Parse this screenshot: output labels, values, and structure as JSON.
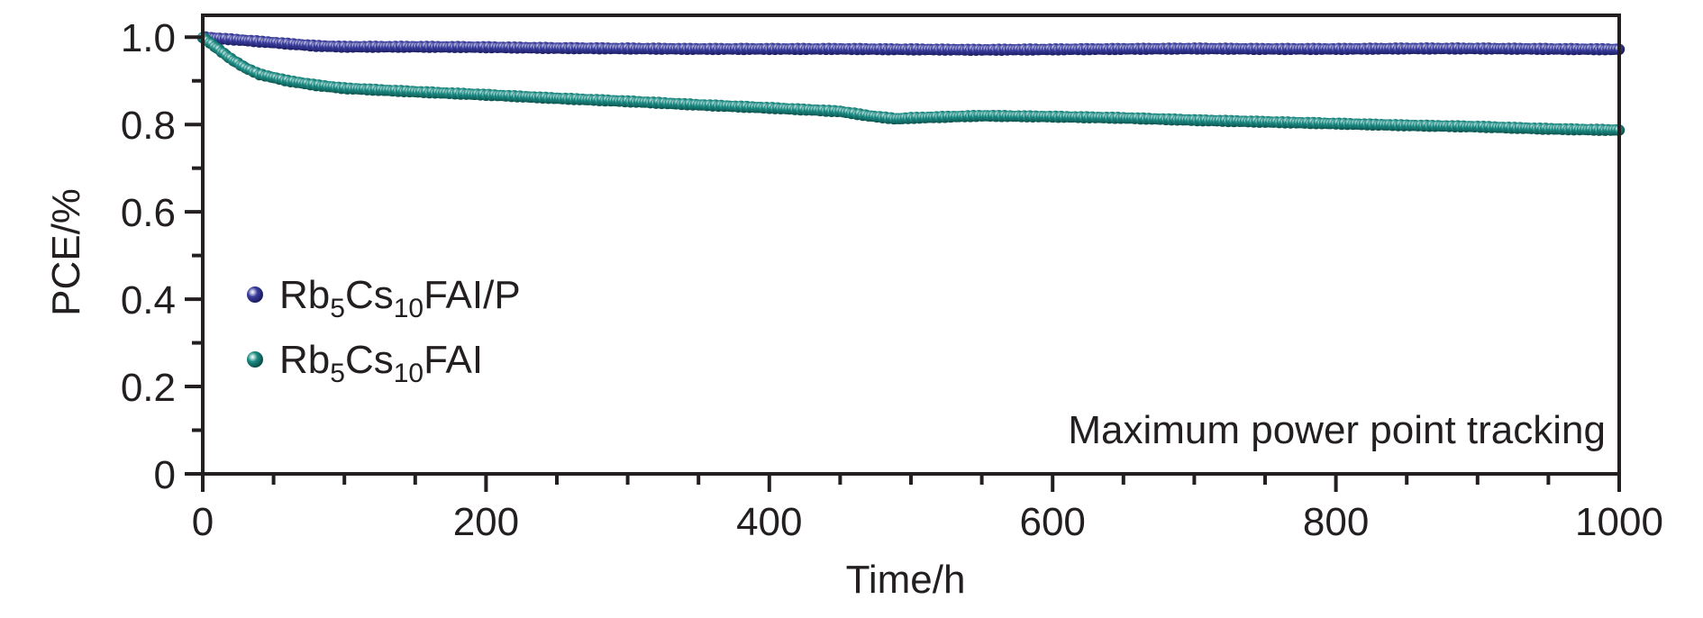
{
  "chart_data": {
    "type": "scatter",
    "title": "",
    "xlabel": "Time/h",
    "ylabel": "PCE/%",
    "xlim": [
      0,
      1000
    ],
    "ylim": [
      0,
      1.05
    ],
    "xticks": [
      0,
      200,
      400,
      600,
      800,
      1000
    ],
    "xtick_labels": [
      "0",
      "200",
      "400",
      "600",
      "800",
      "1000"
    ],
    "yticks": [
      0,
      0.2,
      0.4,
      0.6,
      0.8,
      1.0
    ],
    "ytick_labels": [
      "0",
      "0.2",
      "0.4",
      "0.6",
      "0.8",
      "1.0"
    ],
    "grid": false,
    "legend_position": "center-left",
    "annotation": "Maximum power point tracking",
    "series": [
      {
        "name_parts": [
          {
            "text": "Rb",
            "sub": false
          },
          {
            "text": "5",
            "sub": true
          },
          {
            "text": "Cs",
            "sub": false
          },
          {
            "text": "10",
            "sub": true
          },
          {
            "text": "FAI/P",
            "sub": false
          }
        ],
        "color": "#3a3d9e",
        "x": [
          0,
          20,
          40,
          60,
          80,
          100,
          150,
          200,
          250,
          300,
          350,
          400,
          450,
          500,
          550,
          600,
          650,
          700,
          750,
          800,
          850,
          900,
          950,
          1000
        ],
        "y": [
          1.0,
          0.995,
          0.99,
          0.985,
          0.98,
          0.978,
          0.978,
          0.977,
          0.975,
          0.974,
          0.973,
          0.973,
          0.973,
          0.972,
          0.971,
          0.972,
          0.973,
          0.974,
          0.973,
          0.973,
          0.974,
          0.974,
          0.973,
          0.972
        ]
      },
      {
        "name_parts": [
          {
            "text": "Rb",
            "sub": false
          },
          {
            "text": "5",
            "sub": true
          },
          {
            "text": "Cs",
            "sub": false
          },
          {
            "text": "10",
            "sub": true
          },
          {
            "text": "FAI",
            "sub": false
          }
        ],
        "color": "#1b8c84",
        "x": [
          0,
          10,
          20,
          30,
          40,
          60,
          80,
          100,
          150,
          200,
          250,
          300,
          350,
          400,
          450,
          470,
          490,
          500,
          550,
          600,
          650,
          700,
          750,
          800,
          850,
          900,
          950,
          1000
        ],
        "y": [
          1.0,
          0.975,
          0.95,
          0.93,
          0.915,
          0.9,
          0.89,
          0.883,
          0.875,
          0.868,
          0.86,
          0.853,
          0.845,
          0.838,
          0.83,
          0.82,
          0.813,
          0.815,
          0.82,
          0.818,
          0.815,
          0.81,
          0.806,
          0.802,
          0.798,
          0.795,
          0.79,
          0.787
        ]
      }
    ]
  }
}
